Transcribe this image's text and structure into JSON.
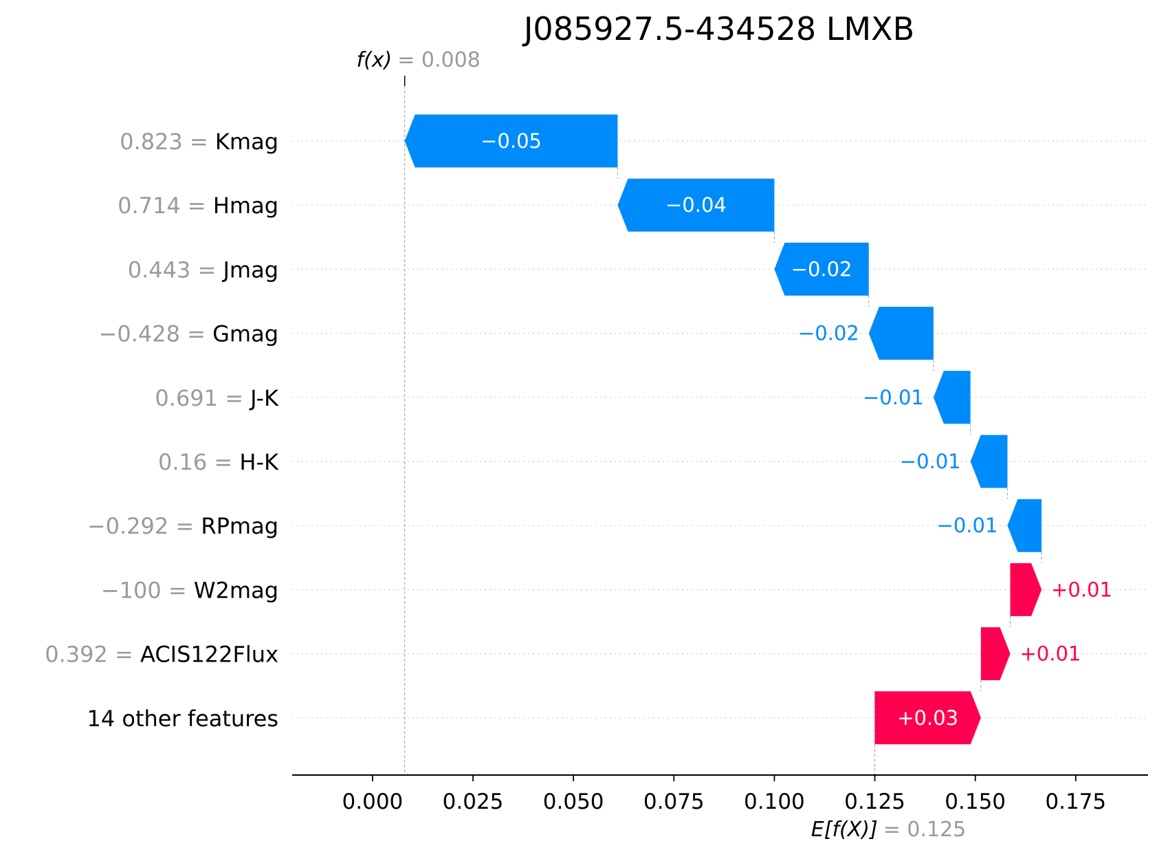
{
  "chart_data": {
    "type": "waterfall",
    "title": "J085927.5-434528 LMXB",
    "fx": {
      "label": "f(x)",
      "value": 0.008,
      "value_text": "= 0.008"
    },
    "expected": {
      "label": "E[f(X)]",
      "value": 0.125,
      "value_text": "= 0.125"
    },
    "xlim": [
      -0.02,
      0.193
    ],
    "xticks": [
      0.0,
      0.025,
      0.05,
      0.075,
      0.1,
      0.125,
      0.15,
      0.175
    ],
    "xtick_labels": [
      "0.000",
      "0.025",
      "0.050",
      "0.075",
      "0.100",
      "0.125",
      "0.150",
      "0.175"
    ],
    "grid": "horizontal-dotted",
    "features": [
      {
        "value_text": "0.823",
        "name": "Kmag",
        "start": 0.061,
        "end": 0.008,
        "label": "−0.05",
        "sign": "neg"
      },
      {
        "value_text": "0.714",
        "name": "Hmag",
        "start": 0.1,
        "end": 0.061,
        "label": "−0.04",
        "sign": "neg"
      },
      {
        "value_text": "0.443",
        "name": "Jmag",
        "start": 0.1235,
        "end": 0.1,
        "label": "−0.02",
        "sign": "neg"
      },
      {
        "value_text": "−0.428",
        "name": "Gmag",
        "start": 0.1396,
        "end": 0.1235,
        "label": "−0.02",
        "sign": "neg"
      },
      {
        "value_text": "0.691",
        "name": "J-K",
        "start": 0.1488,
        "end": 0.1396,
        "label": "−0.01",
        "sign": "neg"
      },
      {
        "value_text": "0.16",
        "name": "H-K",
        "start": 0.158,
        "end": 0.1488,
        "label": "−0.01",
        "sign": "neg"
      },
      {
        "value_text": "−0.292",
        "name": "RPmag",
        "start": 0.1665,
        "end": 0.158,
        "label": "−0.01",
        "sign": "neg"
      },
      {
        "value_text": "−100",
        "name": "W2mag",
        "start": 0.1587,
        "end": 0.1665,
        "label": "+0.01",
        "sign": "pos"
      },
      {
        "value_text": "0.392",
        "name": "ACIS122Flux",
        "start": 0.1514,
        "end": 0.1587,
        "label": "+0.01",
        "sign": "pos"
      },
      {
        "value_text": "",
        "name": "14 other features",
        "start": 0.125,
        "end": 0.1514,
        "label": "+0.03",
        "sign": "pos"
      }
    ],
    "colors": {
      "pos": "#ff0051",
      "neg": "#008bfb",
      "grid": "#cccccc",
      "muted": "#9a9a9a"
    }
  }
}
